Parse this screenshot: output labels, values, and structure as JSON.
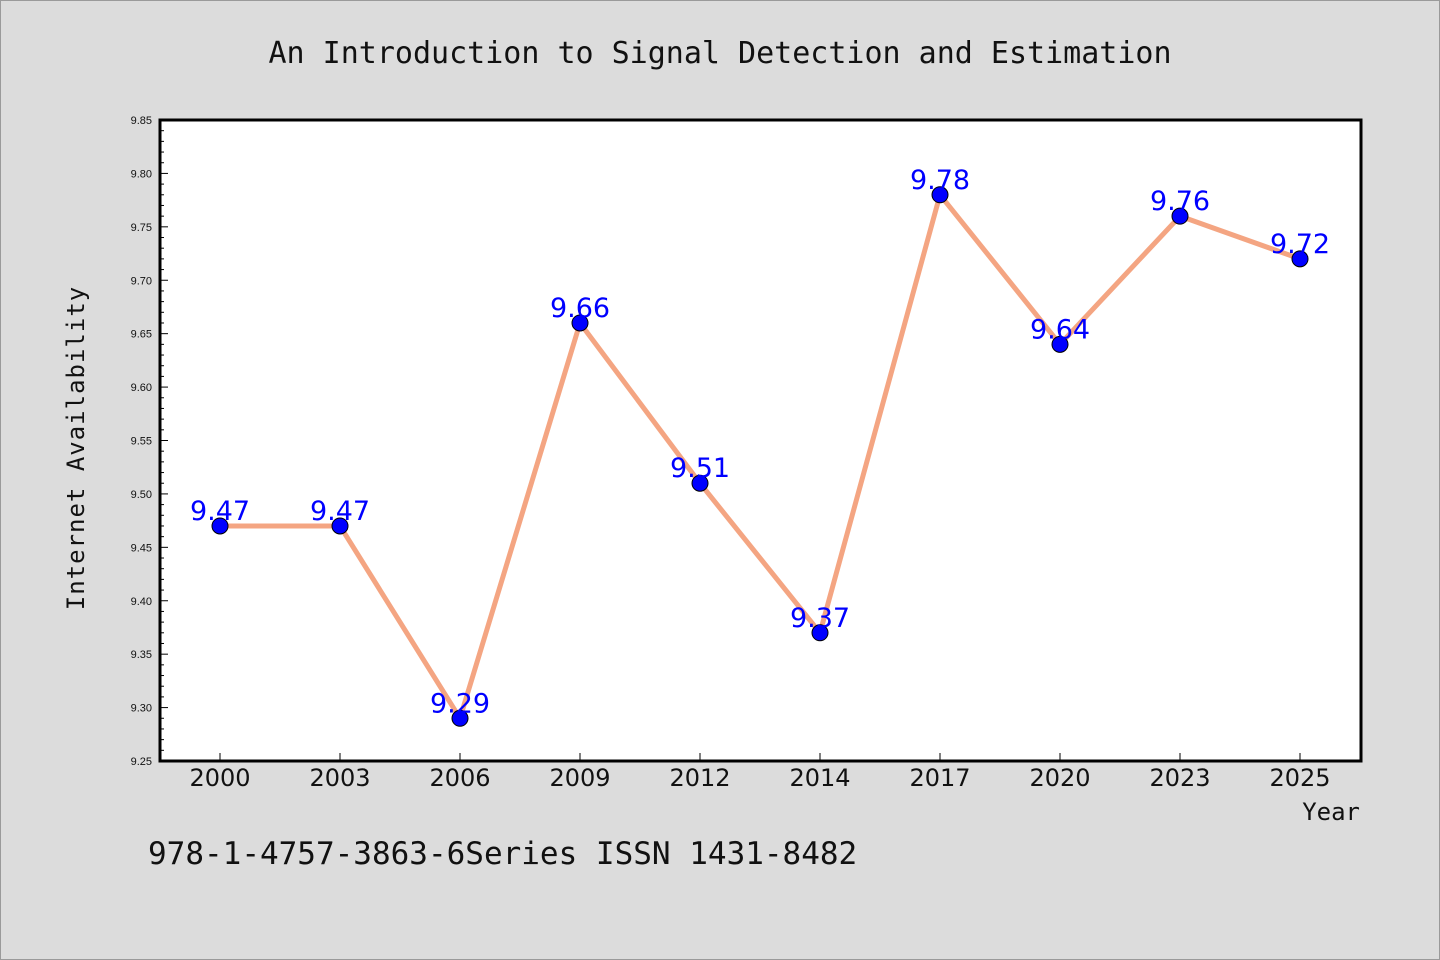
{
  "chart_data": {
    "type": "line",
    "title": "An Introduction to Signal Detection and Estimation",
    "xlabel": "Year",
    "ylabel": "Internet Availability",
    "categories": [
      "2000",
      "2003",
      "2006",
      "2009",
      "2012",
      "2014",
      "2017",
      "2020",
      "2023",
      "2025"
    ],
    "values": [
      9.47,
      9.47,
      9.29,
      9.66,
      9.51,
      9.37,
      9.78,
      9.64,
      9.76,
      9.72
    ],
    "data_labels": [
      "9.47",
      "9.47",
      "9.29",
      "9.66",
      "9.51",
      "9.37",
      "9.78",
      "9.64",
      "9.76",
      "9.72"
    ],
    "ylim": [
      9.25,
      9.85
    ],
    "yticks": [
      "9.25",
      "9.30",
      "9.35",
      "9.40",
      "9.45",
      "9.50",
      "9.55",
      "9.60",
      "9.65",
      "9.70",
      "9.75",
      "9.80",
      "9.85"
    ],
    "grid": false,
    "line_color": "#f4a582",
    "marker_color": "#0000ff",
    "label_color": "#0000ff",
    "background_color": "#dcdcdc",
    "plot_background": "#ffffff"
  },
  "footer": "978-1-4757-3863-6Series ISSN 1431-8482"
}
